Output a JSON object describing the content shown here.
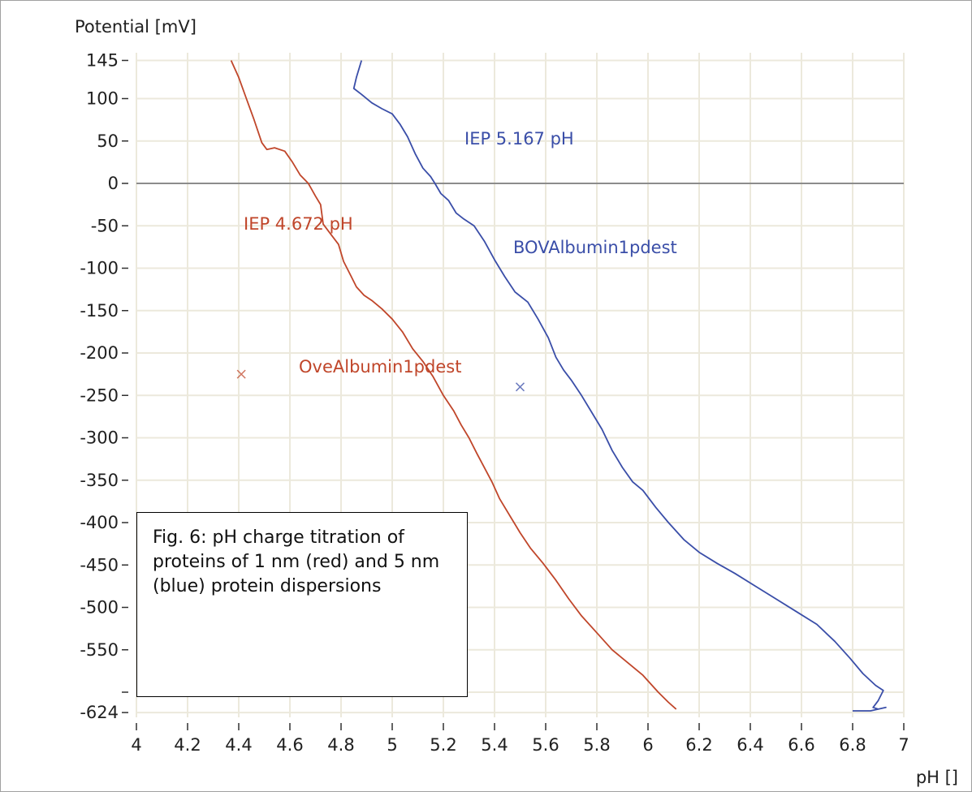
{
  "chart_data": {
    "type": "line",
    "ylabel": "Potential [mV]",
    "xlabel": "pH []",
    "xlim": [
      4,
      7
    ],
    "ylim": [
      -624,
      145
    ],
    "x_ticks": [
      "4",
      "4.2",
      "4.4",
      "4.6",
      "4.8",
      "5",
      "5.2",
      "5.4",
      "5.6",
      "5.8",
      "6",
      "6.2",
      "6.4",
      "6.6",
      "6.8",
      "7"
    ],
    "y_ticks": [
      "145",
      "100",
      "50",
      "0",
      "-50",
      "-100",
      "-150",
      "-200",
      "-250",
      "-300",
      "-350",
      "-400",
      "-450",
      "-500",
      "-550",
      "",
      "-624"
    ],
    "y_tick_values": [
      145,
      100,
      50,
      0,
      -50,
      -100,
      -150,
      -200,
      -250,
      -300,
      -350,
      -400,
      -450,
      -500,
      -550,
      -600,
      -624
    ],
    "grid": true,
    "zero_line": true,
    "series": [
      {
        "name": "OveAlbumin1pdest",
        "color": "#c0462a",
        "annotation": "IEP 4.672 pH",
        "marker": {
          "x": 4.41,
          "y": -225
        },
        "points": [
          [
            4.37,
            145
          ],
          [
            4.4,
            125
          ],
          [
            4.43,
            100
          ],
          [
            4.46,
            75
          ],
          [
            4.49,
            48
          ],
          [
            4.51,
            40
          ],
          [
            4.54,
            42
          ],
          [
            4.58,
            38
          ],
          [
            4.61,
            25
          ],
          [
            4.64,
            10
          ],
          [
            4.672,
            0
          ],
          [
            4.7,
            -15
          ],
          [
            4.72,
            -25
          ],
          [
            4.73,
            -48
          ],
          [
            4.76,
            -60
          ],
          [
            4.79,
            -72
          ],
          [
            4.81,
            -92
          ],
          [
            4.84,
            -110
          ],
          [
            4.86,
            -122
          ],
          [
            4.89,
            -132
          ],
          [
            4.92,
            -138
          ],
          [
            4.96,
            -148
          ],
          [
            5.0,
            -160
          ],
          [
            5.04,
            -175
          ],
          [
            5.08,
            -195
          ],
          [
            5.12,
            -210
          ],
          [
            5.16,
            -228
          ],
          [
            5.2,
            -250
          ],
          [
            5.24,
            -268
          ],
          [
            5.27,
            -285
          ],
          [
            5.3,
            -300
          ],
          [
            5.33,
            -318
          ],
          [
            5.36,
            -335
          ],
          [
            5.39,
            -352
          ],
          [
            5.42,
            -372
          ],
          [
            5.46,
            -392
          ],
          [
            5.5,
            -412
          ],
          [
            5.54,
            -430
          ],
          [
            5.59,
            -448
          ],
          [
            5.64,
            -468
          ],
          [
            5.69,
            -490
          ],
          [
            5.74,
            -510
          ],
          [
            5.8,
            -530
          ],
          [
            5.86,
            -550
          ],
          [
            5.92,
            -565
          ],
          [
            5.98,
            -580
          ],
          [
            6.04,
            -600
          ],
          [
            6.08,
            -612
          ],
          [
            6.11,
            -620
          ]
        ]
      },
      {
        "name": "BOVAlbumin1pdest",
        "color": "#3a4ea8",
        "annotation": "IEP 5.167 pH",
        "marker": {
          "x": 5.5,
          "y": -240
        },
        "points": [
          [
            4.88,
            145
          ],
          [
            4.86,
            125
          ],
          [
            4.85,
            112
          ],
          [
            4.88,
            105
          ],
          [
            4.92,
            95
          ],
          [
            4.96,
            88
          ],
          [
            5.0,
            82
          ],
          [
            5.03,
            70
          ],
          [
            5.06,
            55
          ],
          [
            5.09,
            35
          ],
          [
            5.12,
            18
          ],
          [
            5.15,
            8
          ],
          [
            5.167,
            0
          ],
          [
            5.19,
            -12
          ],
          [
            5.22,
            -20
          ],
          [
            5.25,
            -35
          ],
          [
            5.28,
            -42
          ],
          [
            5.32,
            -50
          ],
          [
            5.36,
            -68
          ],
          [
            5.4,
            -90
          ],
          [
            5.44,
            -110
          ],
          [
            5.48,
            -128
          ],
          [
            5.53,
            -140
          ],
          [
            5.57,
            -160
          ],
          [
            5.61,
            -182
          ],
          [
            5.64,
            -205
          ],
          [
            5.67,
            -220
          ],
          [
            5.7,
            -232
          ],
          [
            5.74,
            -250
          ],
          [
            5.78,
            -270
          ],
          [
            5.82,
            -290
          ],
          [
            5.86,
            -315
          ],
          [
            5.9,
            -335
          ],
          [
            5.94,
            -352
          ],
          [
            5.98,
            -362
          ],
          [
            6.03,
            -382
          ],
          [
            6.08,
            -400
          ],
          [
            6.14,
            -420
          ],
          [
            6.2,
            -435
          ],
          [
            6.27,
            -448
          ],
          [
            6.34,
            -460
          ],
          [
            6.42,
            -475
          ],
          [
            6.5,
            -490
          ],
          [
            6.58,
            -505
          ],
          [
            6.66,
            -520
          ],
          [
            6.73,
            -540
          ],
          [
            6.79,
            -560
          ],
          [
            6.84,
            -578
          ],
          [
            6.89,
            -592
          ],
          [
            6.92,
            -598
          ],
          [
            6.9,
            -610
          ],
          [
            6.88,
            -618
          ],
          [
            6.9,
            -620
          ],
          [
            6.93,
            -618
          ],
          [
            6.87,
            -622
          ],
          [
            6.8,
            -622
          ]
        ]
      }
    ]
  },
  "caption": "Fig. 6: pH charge titration of proteins of 1 nm (red) and 5 nm (blue) protein dispersions"
}
